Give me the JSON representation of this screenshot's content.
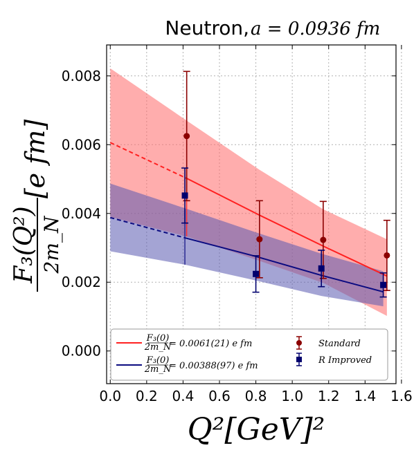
{
  "chart_data": {
    "type": "line",
    "title": {
      "text": "Neutron, ",
      "math": "a = 0.0936 fm"
    },
    "xlabel": "Q²[GeV]²",
    "ylabel": {
      "numerator": "F₃(Q²)",
      "denominator": "2m_N",
      "unit": "[e fm]"
    },
    "xlim": [
      -0.02,
      1.57
    ],
    "ylim": [
      -0.00095,
      0.0089
    ],
    "xticks": [
      0.0,
      0.2,
      0.4,
      0.6,
      0.8,
      1.0,
      1.2,
      1.4,
      1.6
    ],
    "xtick_labels": [
      "0.0",
      "0.2",
      "0.4",
      "0.6",
      "0.8",
      "1.0",
      "1.2",
      "1.4",
      "1.6"
    ],
    "yticks": [
      0.0,
      0.002,
      0.004,
      0.006,
      0.008
    ],
    "ytick_labels": [
      "0.000",
      "0.002",
      "0.004",
      "0.006",
      "0.008"
    ],
    "grid": true,
    "legend_placement": "lower-center",
    "series": [
      {
        "name": "Standard",
        "color": "#8b0000",
        "marker": "circle",
        "points": [
          {
            "x": 0.42,
            "y": 0.00625,
            "err": 0.00188
          },
          {
            "x": 0.82,
            "y": 0.00325,
            "err": 0.00112
          },
          {
            "x": 1.17,
            "y": 0.00323,
            "err": 0.00112
          },
          {
            "x": 1.52,
            "y": 0.00278,
            "err": 0.00102
          }
        ]
      },
      {
        "name": "R Improved",
        "color": "#00006e",
        "marker": "square",
        "points": [
          {
            "x": 0.41,
            "y": 0.00452,
            "err": 0.0008
          },
          {
            "x": 0.8,
            "y": 0.00224,
            "err": 0.00053
          },
          {
            "x": 1.16,
            "y": 0.0024,
            "err": 0.00053
          },
          {
            "x": 1.5,
            "y": 0.00192,
            "err": 0.00035
          }
        ]
      }
    ],
    "fits": [
      {
        "label_fraction_num": "F₃(0)",
        "label_fraction_den": "2m_N",
        "label_value": " = 0.0061(21) e fm",
        "line_color": "#ff2020",
        "band_color": "#ff6a6a",
        "fit_range": [
          0.42,
          1.52
        ],
        "central": [
          [
            0.0,
            0.00606
          ],
          [
            0.42,
            0.00502
          ],
          [
            0.82,
            0.00395
          ],
          [
            1.17,
            0.00305
          ],
          [
            1.52,
            0.00218
          ]
        ],
        "upper": [
          [
            0.0,
            0.00822
          ],
          [
            0.42,
            0.0067
          ],
          [
            0.82,
            0.00527
          ],
          [
            1.17,
            0.00412
          ],
          [
            1.52,
            0.00325
          ]
        ],
        "lower": [
          [
            0.0,
            0.0039
          ],
          [
            0.42,
            0.00333
          ],
          [
            0.82,
            0.00262
          ],
          [
            1.17,
            0.00198
          ],
          [
            1.52,
            0.00102
          ]
        ]
      },
      {
        "label_fraction_num": "F₃(0)",
        "label_fraction_den": "2m_N",
        "label_value": " = 0.00388(97) e fm",
        "line_color": "#0a0a80",
        "band_color": "#5a5ab0",
        "fit_range": [
          0.41,
          1.5
        ],
        "central": [
          [
            0.0,
            0.00388
          ],
          [
            0.41,
            0.00329
          ],
          [
            0.8,
            0.00275
          ],
          [
            1.16,
            0.0022
          ],
          [
            1.5,
            0.00172
          ]
        ],
        "upper": [
          [
            0.0,
            0.00487
          ],
          [
            0.41,
            0.00415
          ],
          [
            0.8,
            0.00345
          ],
          [
            1.16,
            0.00283
          ],
          [
            1.5,
            0.00232
          ]
        ],
        "lower": [
          [
            0.0,
            0.0029
          ],
          [
            0.41,
            0.00251
          ],
          [
            0.8,
            0.00205
          ],
          [
            1.16,
            0.0016
          ],
          [
            1.5,
            0.0013
          ]
        ]
      }
    ]
  }
}
